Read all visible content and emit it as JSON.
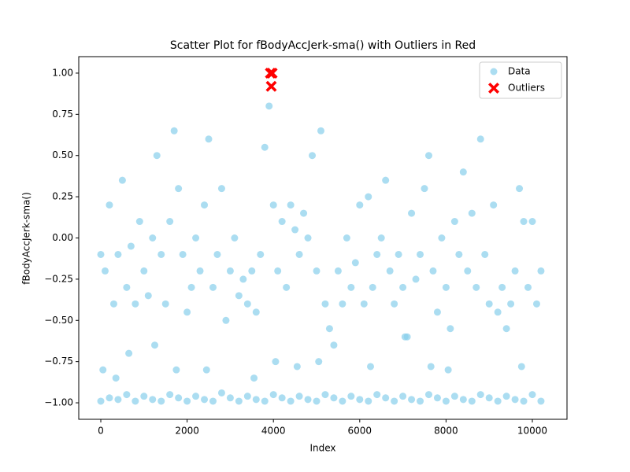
{
  "chart_data": {
    "type": "scatter",
    "title": "Scatter Plot for fBodyAccJerk-sma() with Outliers in Red",
    "x_label": "Index",
    "y_label": "fBodyAccJerk-sma()",
    "xlim": [
      -511,
      10803
    ],
    "ylim": [
      -1.1,
      1.1
    ],
    "xticks": [
      0,
      2000,
      4000,
      6000,
      8000,
      10000
    ],
    "yticks": [
      {
        "value": -1,
        "label": "−1.00"
      },
      {
        "value": -0.75,
        "label": "−0.75"
      },
      {
        "value": -0.5,
        "label": "−0.50"
      },
      {
        "value": -0.25,
        "label": "−0.25"
      },
      {
        "value": 0,
        "label": "0.00"
      },
      {
        "value": 0.25,
        "label": "0.25"
      },
      {
        "value": 0.5,
        "label": "0.50"
      },
      {
        "value": 0.75,
        "label": "0.75"
      },
      {
        "value": 1,
        "label": "1.00"
      }
    ],
    "legend": "upper right",
    "grid": false,
    "series": [
      {
        "name": "Data",
        "color": "#87ceeb",
        "marker": "o",
        "x": [
          0,
          100,
          200,
          300,
          400,
          500,
          600,
          700,
          800,
          900,
          1000,
          1100,
          1200,
          1300,
          1400,
          1500,
          1600,
          1700,
          1800,
          1900,
          2000,
          2100,
          2200,
          2300,
          2400,
          2500,
          2600,
          2700,
          2800,
          2900,
          3000,
          3100,
          3200,
          3300,
          3400,
          3500,
          3600,
          3700,
          3800,
          3900,
          4000,
          4100,
          4200,
          4300,
          4400,
          4500,
          4600,
          4700,
          4800,
          4900,
          5000,
          5100,
          5200,
          5300,
          5400,
          5500,
          5600,
          5700,
          5800,
          5900,
          6000,
          6100,
          6200,
          6300,
          6400,
          6500,
          6600,
          6700,
          6800,
          6900,
          7000,
          7100,
          7200,
          7300,
          7400,
          7500,
          7600,
          7700,
          7800,
          7900,
          8000,
          8100,
          8200,
          8300,
          8400,
          8500,
          8600,
          8700,
          8800,
          8900,
          9000,
          9100,
          9200,
          9300,
          9400,
          9500,
          9600,
          9700,
          9800,
          9900,
          10000,
          10100,
          10200,
          0,
          200,
          400,
          600,
          800,
          1000,
          1200,
          1400,
          1600,
          1800,
          2000,
          2200,
          2400,
          2600,
          2800,
          3000,
          3200,
          3400,
          3600,
          3800,
          4000,
          4200,
          4400,
          4600,
          4800,
          5000,
          5200,
          5400,
          5600,
          5800,
          6000,
          6200,
          6400,
          6600,
          6800,
          7000,
          7200,
          7400,
          7600,
          7800,
          8000,
          8200,
          8400,
          8600,
          8800,
          9000,
          9200,
          9400,
          9600,
          9800,
          10000,
          10200,
          50,
          350,
          650,
          1250,
          1750,
          2450,
          3550,
          4050,
          4550,
          5050,
          6250,
          7050,
          7650,
          8050,
          9750
        ],
        "values": [
          -0.1,
          -0.2,
          0.2,
          -0.4,
          -0.1,
          0.35,
          -0.3,
          -0.05,
          -0.4,
          0.1,
          -0.2,
          -0.35,
          0.0,
          0.5,
          -0.1,
          -0.4,
          0.1,
          0.65,
          0.3,
          -0.1,
          -0.45,
          -0.3,
          0.0,
          -0.2,
          0.2,
          0.6,
          -0.3,
          -0.1,
          0.3,
          -0.5,
          -0.2,
          0.0,
          -0.35,
          -0.25,
          -0.4,
          -0.2,
          -0.45,
          -0.1,
          0.55,
          0.8,
          0.2,
          -0.2,
          0.1,
          -0.3,
          0.2,
          0.05,
          -0.1,
          0.15,
          0.0,
          0.5,
          -0.2,
          0.65,
          -0.4,
          -0.55,
          -0.65,
          -0.2,
          -0.4,
          0.0,
          -0.3,
          -0.15,
          0.2,
          -0.4,
          0.25,
          -0.3,
          -0.1,
          0.0,
          0.35,
          -0.2,
          -0.4,
          -0.1,
          -0.3,
          -0.6,
          0.15,
          -0.25,
          -0.1,
          0.3,
          0.5,
          -0.2,
          -0.45,
          0.0,
          -0.3,
          -0.55,
          0.1,
          -0.1,
          0.4,
          -0.2,
          0.15,
          -0.3,
          0.6,
          -0.1,
          -0.4,
          0.2,
          -0.45,
          -0.3,
          -0.55,
          -0.4,
          -0.2,
          0.3,
          0.1,
          -0.3,
          0.1,
          -0.4,
          -0.2,
          -0.99,
          -0.97,
          -0.98,
          -0.95,
          -0.99,
          -0.96,
          -0.98,
          -0.99,
          -0.95,
          -0.97,
          -0.99,
          -0.96,
          -0.98,
          -0.99,
          -0.94,
          -0.97,
          -0.99,
          -0.96,
          -0.98,
          -0.99,
          -0.95,
          -0.97,
          -0.99,
          -0.96,
          -0.98,
          -0.99,
          -0.95,
          -0.97,
          -0.99,
          -0.96,
          -0.98,
          -0.99,
          -0.95,
          -0.97,
          -0.99,
          -0.96,
          -0.98,
          -0.99,
          -0.95,
          -0.97,
          -0.99,
          -0.96,
          -0.98,
          -0.99,
          -0.95,
          -0.97,
          -0.99,
          -0.96,
          -0.98,
          -0.99,
          -0.95,
          -0.99,
          -0.8,
          -0.85,
          -0.7,
          -0.65,
          -0.8,
          -0.8,
          -0.85,
          -0.75,
          -0.78,
          -0.75,
          -0.78,
          -0.6,
          -0.78,
          -0.8,
          -0.78
        ]
      },
      {
        "name": "Outliers",
        "color": "#ff0000",
        "marker": "X",
        "x": [
          3930,
          3970,
          3950
        ],
        "values": [
          1.0,
          1.0,
          0.92
        ]
      }
    ]
  }
}
